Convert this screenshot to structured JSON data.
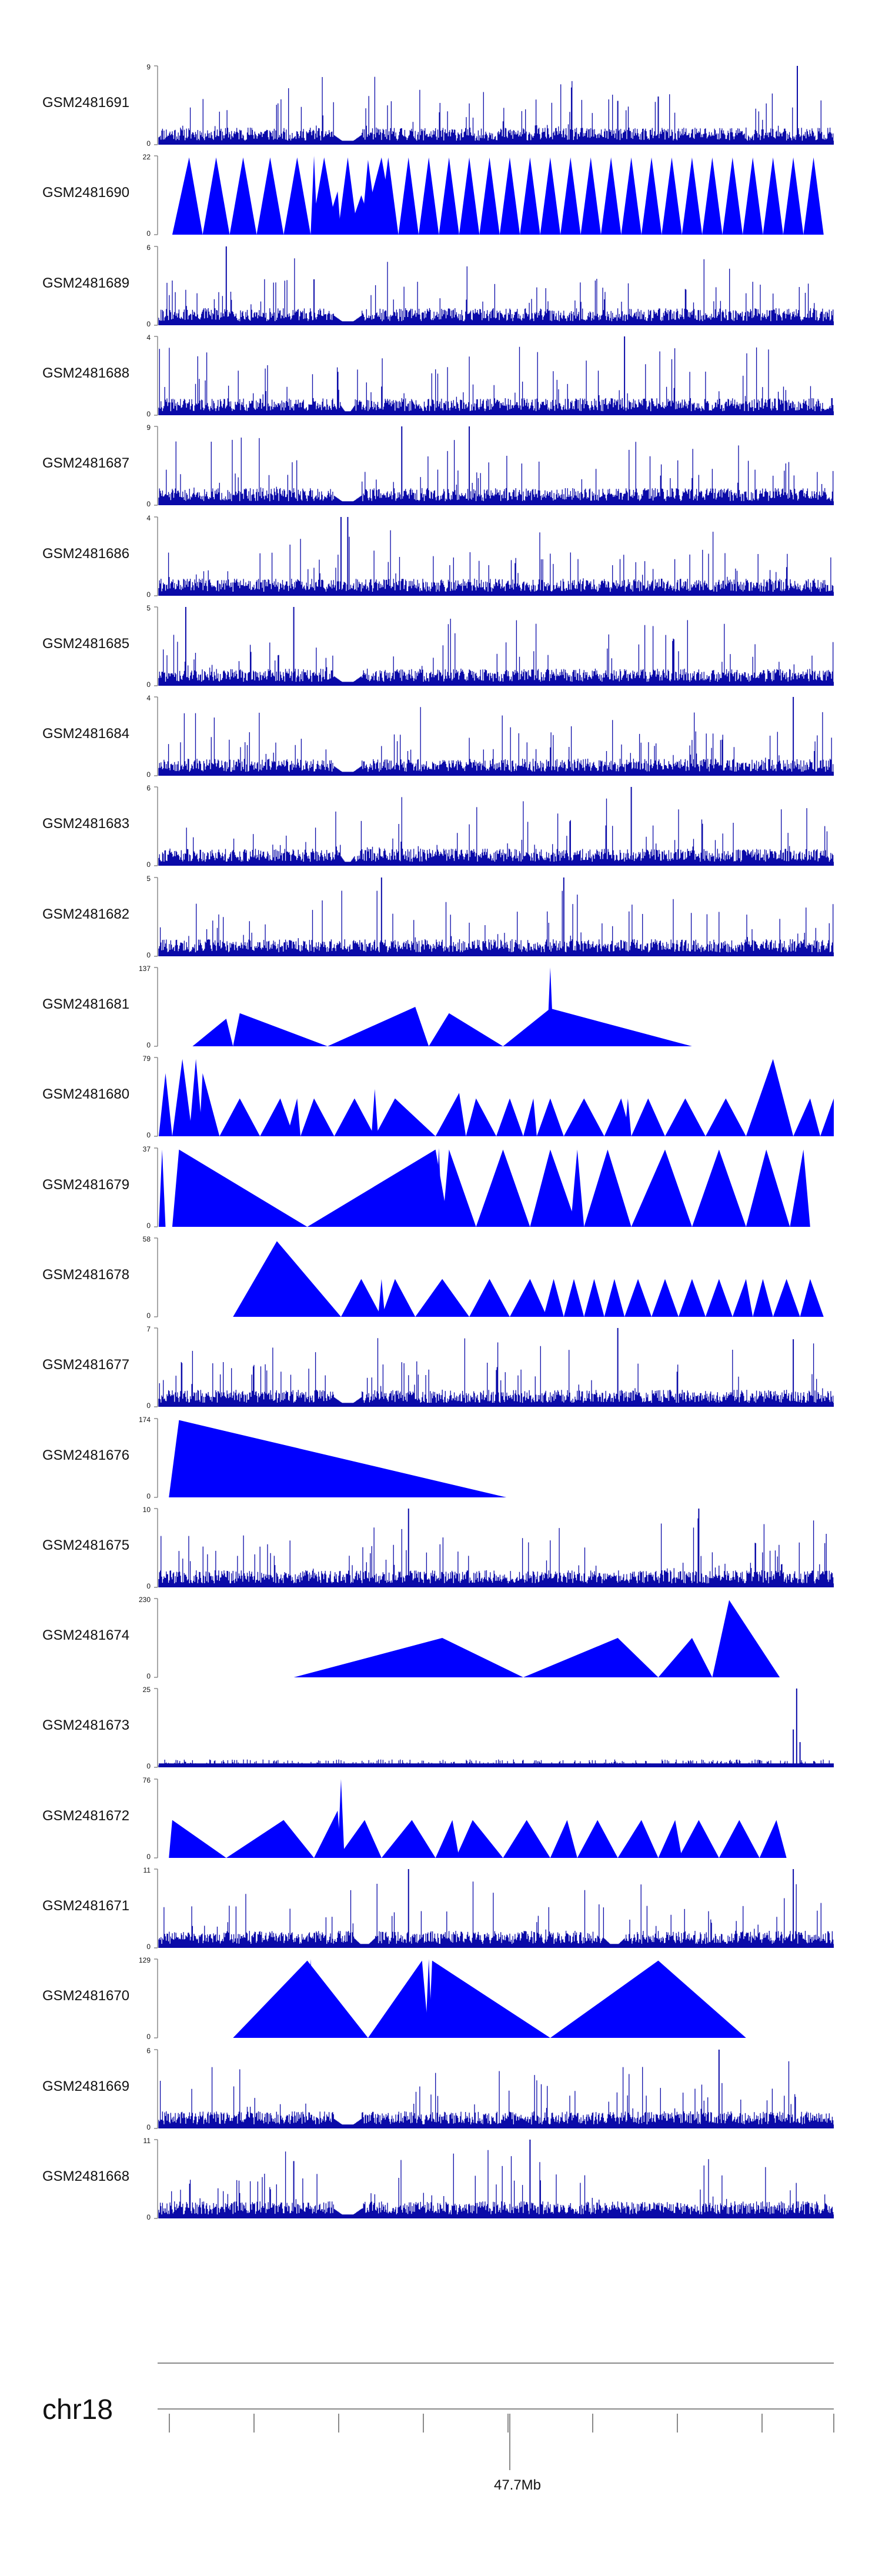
{
  "colors": {
    "signal": "#0000ff",
    "dense_signal": "#0a0aa8",
    "axis": "#8a8a8a",
    "text": "#111111"
  },
  "chart_data": {
    "type": "area",
    "chromosome": "chr18",
    "position_label": "47.7Mb",
    "tracks": [
      {
        "name": "GSM2481691",
        "ymax": "9",
        "ymin": "0",
        "max": 9,
        "style": "dense",
        "seed": 11,
        "gaps": [
          [
            0.26,
            0.3
          ]
        ],
        "spikes": [
          [
            0.946,
            9
          ],
          [
            0.74,
            5.5
          ],
          [
            0.68,
            5
          ]
        ]
      },
      {
        "name": "GSM2481690",
        "ymax": "22",
        "ymin": "0",
        "max": 22,
        "style": "triangles",
        "seed": 21,
        "fill": 0.48,
        "peaks": [
          [
            0.02,
            0.045,
            0.065
          ],
          [
            0.065,
            0.085,
            0.105
          ],
          [
            0.105,
            0.125,
            0.145
          ],
          [
            0.145,
            0.165,
            0.185
          ],
          [
            0.185,
            0.205,
            0.225
          ],
          [
            0.225,
            0.245,
            0.265
          ],
          [
            0.225,
            0.23,
            0.235,
            1.0
          ],
          [
            0.265,
            0.28,
            0.295
          ],
          [
            0.3,
            0.33,
            0.35
          ],
          [
            0.245,
            0.265,
            0.27,
            0.55
          ],
          [
            0.3,
            0.31,
            0.32,
            0.88
          ],
          [
            0.28,
            0.3,
            0.32,
            0.5
          ],
          [
            0.3,
            0.31,
            0.325,
            0.95
          ],
          [
            0.325,
            0.34,
            0.355
          ],
          [
            0.355,
            0.37,
            0.385
          ],
          [
            0.385,
            0.4,
            0.415
          ],
          [
            0.415,
            0.43,
            0.445
          ],
          [
            0.445,
            0.46,
            0.475
          ],
          [
            0.475,
            0.49,
            0.505
          ],
          [
            0.505,
            0.52,
            0.535
          ],
          [
            0.535,
            0.55,
            0.565
          ],
          [
            0.565,
            0.58,
            0.595
          ],
          [
            0.595,
            0.61,
            0.625
          ],
          [
            0.625,
            0.64,
            0.655
          ],
          [
            0.655,
            0.67,
            0.685
          ],
          [
            0.685,
            0.7,
            0.715
          ],
          [
            0.715,
            0.73,
            0.745
          ],
          [
            0.745,
            0.76,
            0.775
          ],
          [
            0.775,
            0.79,
            0.805
          ],
          [
            0.805,
            0.82,
            0.835
          ],
          [
            0.835,
            0.85,
            0.865
          ],
          [
            0.865,
            0.88,
            0.895
          ],
          [
            0.895,
            0.91,
            0.925
          ],
          [
            0.925,
            0.94,
            0.955
          ],
          [
            0.955,
            0.97,
            0.985
          ]
        ]
      },
      {
        "name": "GSM2481689",
        "ymax": "6",
        "ymin": "0",
        "max": 6,
        "style": "dense",
        "seed": 31,
        "gaps": [
          [
            0.26,
            0.3
          ]
        ],
        "spikes": [
          [
            0.1,
            6
          ],
          [
            0.23,
            3.5
          ]
        ]
      },
      {
        "name": "GSM2481688",
        "ymax": "4",
        "ymin": "0",
        "max": 4,
        "style": "dense",
        "seed": 41,
        "gaps": [
          [
            0.27,
            0.29
          ]
        ],
        "spikes": [
          [
            0.69,
            4
          ]
        ]
      },
      {
        "name": "GSM2481687",
        "ymax": "9",
        "ymin": "0",
        "max": 9,
        "style": "dense",
        "seed": 51,
        "gaps": [
          [
            0.26,
            0.3
          ]
        ],
        "spikes": [
          [
            0.36,
            9
          ],
          [
            0.46,
            9
          ]
        ]
      },
      {
        "name": "GSM2481686",
        "ymax": "4",
        "ymin": "0",
        "max": 4,
        "style": "dense",
        "seed": 61,
        "gaps": [],
        "spikes": [
          [
            0.27,
            4
          ],
          [
            0.28,
            4
          ]
        ]
      },
      {
        "name": "GSM2481685",
        "ymax": "5",
        "ymin": "0",
        "max": 5,
        "style": "dense",
        "seed": 71,
        "gaps": [
          [
            0.26,
            0.3
          ]
        ],
        "spikes": [
          [
            0.04,
            5
          ],
          [
            0.2,
            5
          ]
        ]
      },
      {
        "name": "GSM2481684",
        "ymax": "4",
        "ymin": "0",
        "max": 4,
        "style": "dense",
        "seed": 81,
        "gaps": [
          [
            0.26,
            0.3
          ]
        ],
        "spikes": [
          [
            0.94,
            4
          ]
        ]
      },
      {
        "name": "GSM2481683",
        "ymax": "6",
        "ymin": "0",
        "max": 6,
        "style": "dense",
        "seed": 91,
        "gaps": [
          [
            0.27,
            0.29
          ]
        ],
        "spikes": [
          [
            0.7,
            6
          ]
        ]
      },
      {
        "name": "GSM2481682",
        "ymax": "5",
        "ymin": "0",
        "max": 5,
        "style": "dense",
        "seed": 101,
        "gaps": [],
        "spikes": [
          [
            0.33,
            5
          ],
          [
            0.6,
            5
          ]
        ]
      },
      {
        "name": "GSM2481681",
        "ymax": "137",
        "ymin": "0",
        "max": 137,
        "style": "triangles",
        "seed": 111,
        "peaks": [
          [
            0.05,
            0.1,
            0.11,
            0.35
          ],
          [
            0.11,
            0.12,
            0.25,
            0.42
          ],
          [
            0.25,
            0.38,
            0.4,
            0.5
          ],
          [
            0.4,
            0.43,
            0.51,
            0.42
          ],
          [
            0.51,
            0.58,
            0.79,
            0.48
          ],
          [
            0.575,
            0.58,
            0.585,
            1.0
          ]
        ]
      },
      {
        "name": "GSM2481680",
        "ymax": "79",
        "ymin": "0",
        "max": 79,
        "style": "triangles",
        "seed": 121,
        "peaks": [
          [
            0.0,
            0.01,
            0.02,
            0.8
          ],
          [
            0.02,
            0.035,
            0.05,
            0.98
          ],
          [
            0.045,
            0.055,
            0.065,
            0.98
          ],
          [
            0.06,
            0.065,
            0.09,
            0.8
          ],
          [
            0.09,
            0.12,
            0.15,
            0.48
          ],
          [
            0.15,
            0.18,
            0.2,
            0.48
          ],
          [
            0.19,
            0.205,
            0.21,
            0.48
          ],
          [
            0.21,
            0.23,
            0.26,
            0.48
          ],
          [
            0.26,
            0.29,
            0.32,
            0.48
          ],
          [
            0.315,
            0.32,
            0.325,
            0.6
          ],
          [
            0.32,
            0.35,
            0.41,
            0.48
          ],
          [
            0.41,
            0.445,
            0.455,
            0.55
          ],
          [
            0.455,
            0.47,
            0.5,
            0.48
          ],
          [
            0.5,
            0.52,
            0.54,
            0.48
          ],
          [
            0.54,
            0.555,
            0.56,
            0.48
          ],
          [
            0.56,
            0.58,
            0.6,
            0.48
          ],
          [
            0.6,
            0.63,
            0.66,
            0.48
          ],
          [
            0.66,
            0.685,
            0.7,
            0.48
          ],
          [
            0.69,
            0.695,
            0.7,
            0.48
          ],
          [
            0.7,
            0.725,
            0.75,
            0.48
          ],
          [
            0.75,
            0.78,
            0.81,
            0.48
          ],
          [
            0.81,
            0.84,
            0.87,
            0.48
          ],
          [
            0.87,
            0.91,
            0.94,
            0.98
          ],
          [
            0.94,
            0.965,
            0.98,
            0.48
          ],
          [
            0.98,
            1.0,
            1.0,
            0.48
          ]
        ]
      },
      {
        "name": "GSM2481679",
        "ymax": "37",
        "ymin": "0",
        "max": 37,
        "style": "triangles",
        "seed": 131,
        "peaks": [
          [
            0.0,
            0.005,
            0.01,
            0.98
          ],
          [
            0.02,
            0.03,
            0.22,
            0.98
          ],
          [
            0.22,
            0.41,
            0.43,
            0.98
          ],
          [
            0.41,
            0.415,
            0.42,
            1.0
          ],
          [
            0.42,
            0.43,
            0.47,
            0.98
          ],
          [
            0.47,
            0.51,
            0.55,
            0.98
          ],
          [
            0.55,
            0.58,
            0.62,
            0.98
          ],
          [
            0.61,
            0.62,
            0.63,
            0.98
          ],
          [
            0.63,
            0.665,
            0.7,
            0.98
          ],
          [
            0.7,
            0.75,
            0.79,
            0.98
          ],
          [
            0.79,
            0.83,
            0.87,
            0.98
          ],
          [
            0.87,
            0.9,
            0.935,
            0.98
          ],
          [
            0.935,
            0.955,
            0.965,
            0.98
          ]
        ]
      },
      {
        "name": "GSM2481678",
        "ymax": "58",
        "ymin": "0",
        "max": 58,
        "style": "triangles",
        "seed": 141,
        "peaks": [
          [
            0.11,
            0.175,
            0.27,
            0.96
          ],
          [
            0.27,
            0.3,
            0.33,
            0.48
          ],
          [
            0.325,
            0.33,
            0.335,
            0.48
          ],
          [
            0.33,
            0.35,
            0.38,
            0.48
          ],
          [
            0.38,
            0.42,
            0.46,
            0.48
          ],
          [
            0.46,
            0.49,
            0.52,
            0.48
          ],
          [
            0.52,
            0.55,
            0.575,
            0.48
          ],
          [
            0.57,
            0.585,
            0.6,
            0.48
          ],
          [
            0.6,
            0.615,
            0.63,
            0.48
          ],
          [
            0.63,
            0.645,
            0.66,
            0.48
          ],
          [
            0.66,
            0.675,
            0.69,
            0.48
          ],
          [
            0.69,
            0.71,
            0.73,
            0.48
          ],
          [
            0.73,
            0.75,
            0.77,
            0.48
          ],
          [
            0.77,
            0.79,
            0.81,
            0.48
          ],
          [
            0.81,
            0.83,
            0.85,
            0.48
          ],
          [
            0.85,
            0.87,
            0.88,
            0.48
          ],
          [
            0.88,
            0.895,
            0.91,
            0.48
          ],
          [
            0.91,
            0.93,
            0.95,
            0.48
          ],
          [
            0.95,
            0.965,
            0.985,
            0.48
          ]
        ]
      },
      {
        "name": "GSM2481677",
        "ymax": "7",
        "ymin": "0",
        "max": 7,
        "style": "dense",
        "seed": 151,
        "gaps": [
          [
            0.26,
            0.3
          ]
        ],
        "spikes": [
          [
            0.68,
            7
          ],
          [
            0.94,
            6
          ]
        ]
      },
      {
        "name": "GSM2481676",
        "ymax": "174",
        "ymin": "0",
        "max": 174,
        "style": "triangles",
        "seed": 161,
        "peaks": [
          [
            0.015,
            0.03,
            0.515,
            0.98
          ]
        ]
      },
      {
        "name": "GSM2481675",
        "ymax": "10",
        "ymin": "0",
        "max": 10,
        "style": "dense",
        "seed": 171,
        "gaps": [],
        "spikes": [
          [
            0.37,
            10
          ],
          [
            0.8,
            10
          ]
        ]
      },
      {
        "name": "GSM2481674",
        "ymax": "230",
        "ymin": "0",
        "max": 230,
        "style": "triangles",
        "seed": 181,
        "peaks": [
          [
            0.2,
            0.42,
            0.54,
            0.5
          ],
          [
            0.54,
            0.68,
            0.74,
            0.5
          ],
          [
            0.74,
            0.79,
            0.82,
            0.5
          ],
          [
            0.82,
            0.845,
            0.92,
            0.98
          ]
        ]
      },
      {
        "name": "GSM2481673",
        "ymax": "25",
        "ymin": "0",
        "max": 25,
        "style": "sparse",
        "seed": 191,
        "gaps": [],
        "spikes": [
          [
            0.945,
            25
          ],
          [
            0.94,
            12
          ],
          [
            0.95,
            8
          ]
        ]
      },
      {
        "name": "GSM2481672",
        "ymax": "76",
        "ymin": "0",
        "max": 76,
        "style": "triangles",
        "seed": 201,
        "peaks": [
          [
            0.015,
            0.02,
            0.1,
            0.48
          ],
          [
            0.1,
            0.185,
            0.23,
            0.48
          ],
          [
            0.23,
            0.265,
            0.27,
            0.6
          ],
          [
            0.265,
            0.27,
            0.275,
            1.0
          ],
          [
            0.265,
            0.305,
            0.33,
            0.48
          ],
          [
            0.33,
            0.375,
            0.41,
            0.48
          ],
          [
            0.41,
            0.435,
            0.445,
            0.48
          ],
          [
            0.44,
            0.465,
            0.51,
            0.48
          ],
          [
            0.51,
            0.545,
            0.58,
            0.48
          ],
          [
            0.58,
            0.605,
            0.62,
            0.48
          ],
          [
            0.62,
            0.65,
            0.68,
            0.48
          ],
          [
            0.68,
            0.715,
            0.74,
            0.48
          ],
          [
            0.74,
            0.765,
            0.775,
            0.48
          ],
          [
            0.77,
            0.8,
            0.83,
            0.48
          ],
          [
            0.83,
            0.86,
            0.89,
            0.48
          ],
          [
            0.89,
            0.915,
            0.93,
            0.48
          ]
        ]
      },
      {
        "name": "GSM2481671",
        "ymax": "11",
        "ymin": "0",
        "max": 11,
        "style": "dense",
        "seed": 211,
        "gaps": [
          [
            0.29,
            0.32
          ],
          [
            0.66,
            0.69
          ]
        ],
        "spikes": [
          [
            0.37,
            11
          ],
          [
            0.94,
            11
          ]
        ]
      },
      {
        "name": "GSM2481670",
        "ymax": "129",
        "ymin": "0",
        "max": 129,
        "style": "triangles",
        "seed": 221,
        "peaks": [
          [
            0.11,
            0.22,
            0.31,
            0.98
          ],
          [
            0.22,
            0.225,
            0.23,
            1.0
          ],
          [
            0.31,
            0.39,
            0.4,
            0.98
          ],
          [
            0.395,
            0.4,
            0.405,
            1.0
          ],
          [
            0.4,
            0.405,
            0.58,
            0.98
          ],
          [
            0.58,
            0.74,
            0.87,
            0.98
          ]
        ]
      },
      {
        "name": "GSM2481669",
        "ymax": "6",
        "ymin": "0",
        "max": 6,
        "style": "dense",
        "seed": 231,
        "gaps": [
          [
            0.26,
            0.3
          ]
        ],
        "spikes": [
          [
            0.83,
            6
          ]
        ]
      },
      {
        "name": "GSM2481668",
        "ymax": "11",
        "ymin": "0",
        "max": 11,
        "style": "dense",
        "seed": 241,
        "gaps": [
          [
            0.26,
            0.3
          ]
        ],
        "spikes": [
          [
            0.55,
            11
          ],
          [
            0.2,
            8
          ]
        ]
      }
    ]
  }
}
